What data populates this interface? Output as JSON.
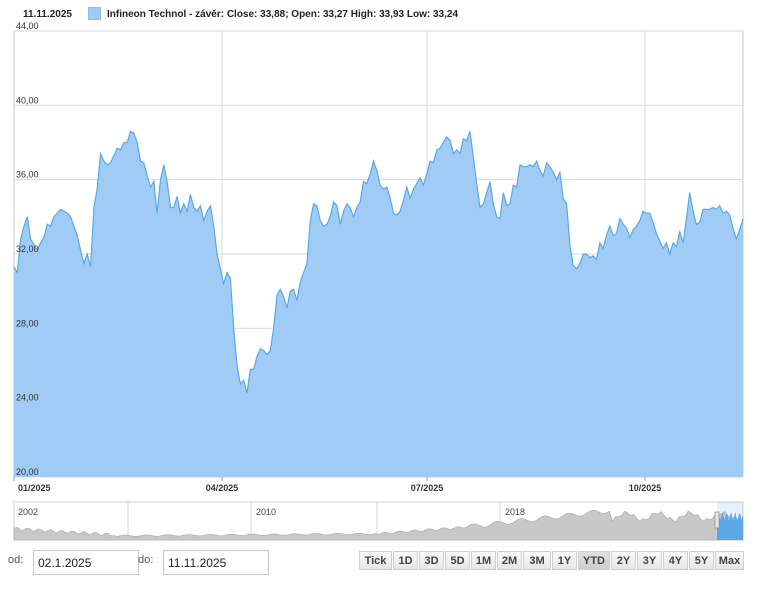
{
  "legend": {
    "date": "11.11.2025",
    "series_label": "Infineon Technol - závěr: Close: 33,88; Open: 33,27 High: 33,93 Low: 33,24"
  },
  "colors": {
    "area_fill": "#9fcbf4",
    "area_line": "#5aa8e6",
    "nav_fill": "#c8c8c8",
    "nav_selected": "#5aa8e6"
  },
  "chart_data": {
    "type": "area",
    "ylim": [
      20,
      44
    ],
    "y_ticks": [
      "44,00",
      "40,00",
      "36,00",
      "32,00",
      "28,00",
      "24,00",
      "20,00"
    ],
    "x_ticks": [
      "01/2025",
      "04/2025",
      "07/2025",
      "10/2025"
    ],
    "grid": true,
    "series": [
      {
        "values": [
          31.3,
          31.0,
          32.8,
          33.5,
          34.0,
          32.8,
          32.5,
          32.2,
          32.6,
          32.9,
          33.6,
          33.5,
          34.0,
          34.2,
          34.4,
          34.3,
          34.2,
          34.0,
          33.5,
          33.0,
          32.2,
          31.5,
          32.0,
          31.3,
          34.5,
          35.5,
          37.4,
          37.0,
          36.8,
          36.9,
          37.3,
          37.7,
          37.6,
          38.0,
          38.0,
          38.6,
          38.5,
          38.0,
          37.0,
          36.9,
          36.2,
          35.6,
          35.9,
          34.2,
          36.0,
          36.8,
          35.9,
          34.5,
          34.5,
          35.1,
          34.2,
          34.7,
          34.3,
          35.2,
          34.5,
          34.3,
          34.6,
          33.8,
          34.3,
          34.6,
          33.5,
          32.0,
          31.2,
          30.4,
          31.0,
          30.7,
          28.0,
          26.0,
          25.0,
          25.2,
          24.5,
          25.8,
          25.8,
          26.5,
          26.9,
          26.8,
          26.6,
          26.8,
          28.0,
          29.8,
          30.1,
          29.7,
          29.1,
          30.0,
          30.1,
          29.5,
          30.5,
          31.0,
          31.5,
          33.8,
          34.7,
          34.6,
          33.8,
          33.5,
          33.6,
          34.0,
          34.8,
          34.6,
          33.6,
          34.3,
          34.7,
          34.5,
          34.0,
          34.5,
          34.8,
          35.9,
          35.8,
          36.3,
          37.0,
          36.5,
          35.7,
          35.5,
          35.6,
          35.0,
          34.2,
          34.1,
          34.3,
          34.9,
          35.6,
          35.0,
          35.5,
          35.8,
          36.1,
          35.7,
          36.3,
          37.0,
          36.9,
          37.6,
          37.7,
          38.0,
          38.3,
          38.1,
          37.4,
          37.6,
          37.4,
          38.2,
          38.1,
          38.6,
          37.2,
          35.8,
          34.5,
          34.7,
          35.3,
          35.9,
          34.7,
          34.0,
          33.9,
          35.3,
          34.6,
          34.7,
          35.7,
          35.6,
          36.8,
          36.7,
          36.7,
          36.8,
          36.7,
          37.0,
          36.5,
          36.2,
          36.9,
          36.7,
          36.4,
          36.0,
          36.4,
          35.0,
          34.7,
          32.5,
          31.4,
          31.2,
          31.5,
          32.0,
          32.0,
          31.8,
          31.9,
          31.7,
          32.6,
          32.3,
          33.0,
          33.5,
          33.0,
          33.1,
          33.9,
          33.6,
          33.4,
          32.9,
          33.3,
          33.5,
          33.8,
          34.3,
          34.2,
          34.2,
          33.7,
          33.1,
          32.7,
          32.3,
          32.6,
          32.0,
          32.6,
          32.4,
          33.2,
          32.6,
          33.9,
          35.3,
          34.3,
          33.6,
          33.7,
          34.4,
          34.4,
          34.4,
          34.5,
          34.4,
          34.6,
          34.2,
          34.3,
          34.1,
          33.4,
          32.8,
          33.3,
          33.88
        ]
      }
    ],
    "navigator": {
      "x_ticks": [
        "2002",
        "2010",
        "2018"
      ]
    }
  },
  "controls": {
    "from_label": "od:",
    "from_value": "02.1.2025",
    "to_label": "do:",
    "to_value": "11.11.2025",
    "buttons": [
      "Tick",
      "1D",
      "3D",
      "5D",
      "1M",
      "2M",
      "3M",
      "1Y",
      "YTD",
      "2Y",
      "3Y",
      "4Y",
      "5Y",
      "Max"
    ],
    "active_button": "YTD"
  }
}
